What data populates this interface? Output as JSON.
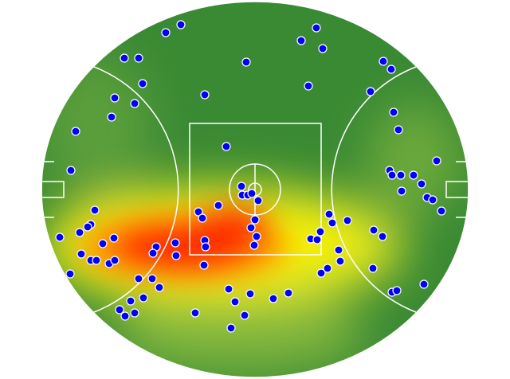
{
  "chart_data": {
    "type": "scatter",
    "color": "#0000ff",
    "xlim": [
      0,
      536
    ],
    "ylim": [
      0,
      472
    ],
    "x": [
      156,
      175,
      104,
      122,
      127,
      92,
      117,
      88,
      43,
      37,
      205,
      257,
      326,
      345,
      353,
      335,
      429,
      439,
      413,
      442,
      448,
      496,
      437,
      440,
      451,
      467,
      452,
      477,
      484,
      491,
      502,
      232,
      251,
      252,
      259,
      264,
      272,
      268,
      263,
      270,
      267,
      197,
      202,
      222,
      205,
      206,
      204,
      168,
      169,
      144,
      140,
      67,
      62,
      58,
      48,
      23,
      91,
      77,
      50,
      62,
      69,
      85,
      92,
      36,
      122,
      139,
      148,
      128,
      112,
      98,
      105,
      117,
      193,
      238,
      255,
      243,
      235,
      262,
      291,
      310,
      361,
      365,
      384,
      350,
      338,
      346,
      373,
      375,
      359,
      351,
      417,
      428,
      416,
      440,
      446,
      480
    ],
    "y": [
      433,
      443,
      401,
      401,
      369,
      351,
      344,
      327,
      309,
      260,
      355,
      396,
      423,
      439,
      413,
      366,
      397,
      387,
      359,
      333,
      311,
      272,
      260,
      254,
      254,
      254,
      234,
      243,
      226,
      223,
      209,
      290,
      240,
      229,
      229,
      231,
      222,
      198,
      188,
      177,
      166,
      208,
      200,
      216,
      172,
      164,
      141,
      169,
      153,
      164,
      156,
      210,
      192,
      189,
      182,
      176,
      175,
      168,
      155,
      147,
      147,
      143,
      147,
      130,
      124,
      124,
      113,
      100,
      96,
      85,
      77,
      81,
      81,
      62,
      78,
      95,
      111,
      105,
      99,
      106,
      205,
      194,
      197,
      183,
      174,
      173,
      160,
      146,
      137,
      131,
      185,
      177,
      137,
      107,
      109,
      117
    ]
  }
}
